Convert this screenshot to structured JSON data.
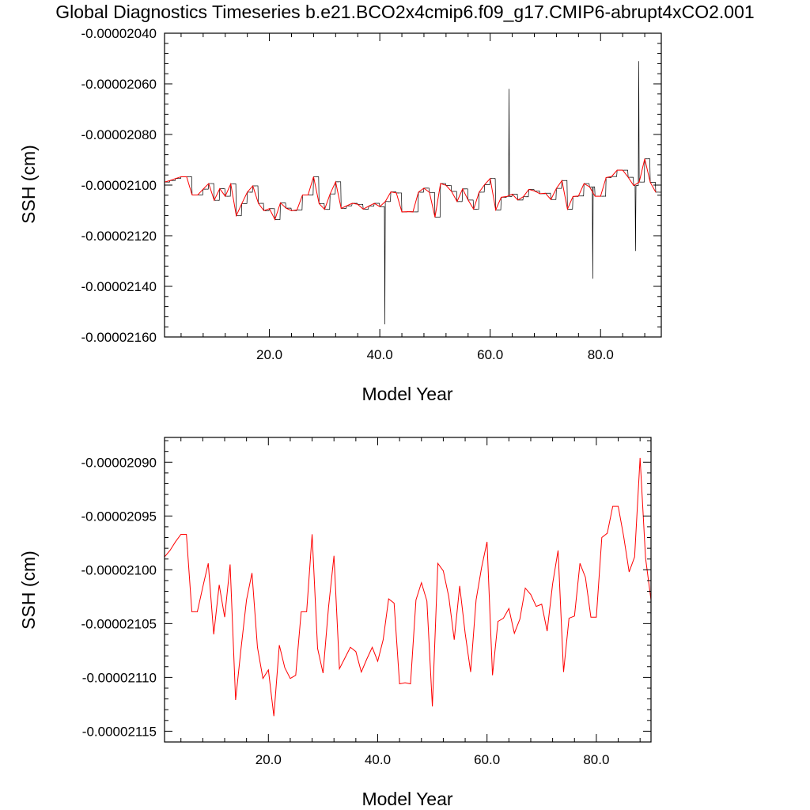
{
  "title": "Global Diagnostics Timeseries b.e21.BCO2x4cmip6.f09_g17.CMIP6-abrupt4xCO2.001",
  "colors": {
    "monthly": "#000000",
    "annual": "#ff0000",
    "axis": "#000000"
  },
  "chart_data": [
    {
      "type": "line",
      "title": "Global Diagnostics Timeseries b.e21.BCO2x4cmip6.f09_g17.CMIP6-abrupt4xCO2.001",
      "xlabel": "Model Year",
      "ylabel": "SSH (cm)",
      "xlim": [
        1.0,
        91.0
      ],
      "ylim": [
        -2.16e-05,
        -2.04e-05
      ],
      "xticks": [
        20,
        40,
        60,
        80
      ],
      "xtick_labels": [
        "20.0",
        "40.0",
        "60.0",
        "80.0"
      ],
      "yticks": [
        -2.04e-05,
        -2.06e-05,
        -2.08e-05,
        -2.1e-05,
        -2.12e-05,
        -2.14e-05,
        -2.16e-05
      ],
      "ytick_labels": [
        "-0.00002040",
        "-0.00002060",
        "-0.00002080",
        "-0.00002100",
        "-0.00002120",
        "-0.00002140",
        "-0.00002160"
      ],
      "series": [
        {
          "name": "monthly",
          "color": "#000000",
          "generator": "monthly_noise_around_annual",
          "noise_std": 1.2e-10,
          "extreme_points": [
            {
              "x": 40.9,
              "y": -2.155e-05
            },
            {
              "x": 86.9,
              "y": -2.051e-05
            },
            {
              "x": 63.4,
              "y": -2.062e-05
            },
            {
              "x": 86.3,
              "y": -2.126e-05
            },
            {
              "x": 78.6,
              "y": -2.137e-05
            }
          ]
        },
        {
          "name": "annual",
          "color": "#ff0000",
          "ref": "annual"
        }
      ]
    },
    {
      "type": "line",
      "xlabel": "Model Year",
      "ylabel": "SSH (cm)",
      "xlim": [
        1.0,
        90.0
      ],
      "ylim": [
        -2.116e-05,
        -2.0877e-05
      ],
      "xticks": [
        20,
        40,
        60,
        80
      ],
      "xtick_labels": [
        "20.0",
        "40.0",
        "60.0",
        "80.0"
      ],
      "yticks": [
        -2.09e-05,
        -2.095e-05,
        -2.1e-05,
        -2.105e-05,
        -2.11e-05,
        -2.115e-05
      ],
      "ytick_labels": [
        "-0.00002090",
        "-0.00002095",
        "-0.00002100",
        "-0.00002105",
        "-0.00002110",
        "-0.00002115"
      ],
      "series": [
        {
          "name": "annual",
          "color": "#ff0000",
          "ref": "annual"
        }
      ]
    }
  ],
  "annual": {
    "x": [
      1,
      2,
      3,
      4,
      5,
      6,
      7,
      8,
      9,
      10,
      11,
      12,
      13,
      14,
      15,
      16,
      17,
      18,
      19,
      20,
      21,
      22,
      23,
      24,
      25,
      26,
      27,
      28,
      29,
      30,
      31,
      32,
      33,
      34,
      35,
      36,
      37,
      38,
      39,
      40,
      41,
      42,
      43,
      44,
      45,
      46,
      47,
      48,
      49,
      50,
      51,
      52,
      53,
      54,
      55,
      56,
      57,
      58,
      59,
      60,
      61,
      62,
      63,
      64,
      65,
      66,
      67,
      68,
      69,
      70,
      71,
      72,
      73,
      74,
      75,
      76,
      77,
      78,
      79,
      80,
      81,
      82,
      83,
      84,
      85,
      86,
      87,
      88,
      89,
      90
    ],
    "y": [
      -2.0988e-05,
      -2.0982e-05,
      -2.0974e-05,
      -2.0967e-05,
      -2.0967e-05,
      -2.1039e-05,
      -2.1039e-05,
      -2.1016e-05,
      -2.0994e-05,
      -2.106e-05,
      -2.1014e-05,
      -2.1044e-05,
      -2.0995e-05,
      -2.1121e-05,
      -2.1073e-05,
      -2.1028e-05,
      -2.1003e-05,
      -2.1072e-05,
      -2.1101e-05,
      -2.1093e-05,
      -2.1136e-05,
      -2.107e-05,
      -2.1091e-05,
      -2.1101e-05,
      -2.1098e-05,
      -2.1039e-05,
      -2.1039e-05,
      -2.0967e-05,
      -2.1073e-05,
      -2.1096e-05,
      -2.1035e-05,
      -2.0987e-05,
      -2.1092e-05,
      -2.1082e-05,
      -2.1072e-05,
      -2.1076e-05,
      -2.1095e-05,
      -2.1083e-05,
      -2.1072e-05,
      -2.1085e-05,
      -2.1065e-05,
      -2.1027e-05,
      -2.1031e-05,
      -2.1106e-05,
      -2.1105e-05,
      -2.1106e-05,
      -2.1028e-05,
      -2.1012e-05,
      -2.1029e-05,
      -2.1127e-05,
      -2.0994e-05,
      -2.1001e-05,
      -2.1025e-05,
      -2.1065e-05,
      -2.1015e-05,
      -2.1059e-05,
      -2.1095e-05,
      -2.1028e-05,
      -2.0998e-05,
      -2.0974e-05,
      -2.1098e-05,
      -2.1048e-05,
      -2.1045e-05,
      -2.1036e-05,
      -2.1059e-05,
      -2.1046e-05,
      -2.1017e-05,
      -2.1023e-05,
      -2.1034e-05,
      -2.1032e-05,
      -2.1057e-05,
      -2.1013e-05,
      -2.0982e-05,
      -2.1095e-05,
      -2.1045e-05,
      -2.1043e-05,
      -2.0994e-05,
      -2.1007e-05,
      -2.1044e-05,
      -2.1044e-05,
      -2.097e-05,
      -2.0966e-05,
      -2.0941e-05,
      -2.0941e-05,
      -2.0969e-05,
      -2.1002e-05,
      -2.0988e-05,
      -2.0896e-05,
      -2.0989e-05,
      -2.1028e-05
    ]
  },
  "axis_labels": {
    "top": {
      "ylabel": "SSH (cm)",
      "xlabel": "Model Year"
    },
    "bottom": {
      "ylabel": "SSH (cm)",
      "xlabel": "Model Year"
    }
  }
}
